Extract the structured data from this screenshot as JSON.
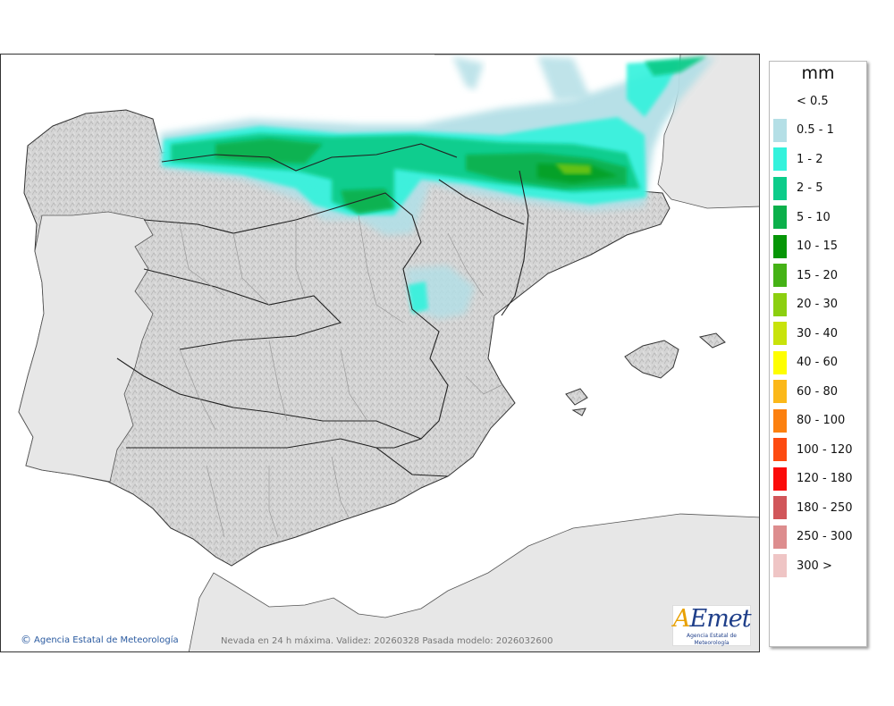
{
  "map": {
    "credit": "Agencia Estatal de Meteorología",
    "copyright_symbol": "©",
    "validity_text": "Nevada en 24 h máxima. Validez: 20260328 Pasada modelo: 2026032600",
    "logo": {
      "wordmark_a": "A",
      "wordmark_rest": "Emet",
      "subtitle": "Agencia Estatal de Meteorología"
    }
  },
  "legend": {
    "unit": "mm",
    "items": [
      {
        "label": "< 0.5",
        "color": "#ffffff"
      },
      {
        "label": "0.5 - 1",
        "color": "#b4dfe6"
      },
      {
        "label": "1 - 2",
        "color": "#33f2dc"
      },
      {
        "label": "2 - 5",
        "color": "#0ccc8a"
      },
      {
        "label": "5 - 10",
        "color": "#0bb04b"
      },
      {
        "label": "10 - 15",
        "color": "#069607"
      },
      {
        "label": "15 - 20",
        "color": "#45b216"
      },
      {
        "label": "20 - 30",
        "color": "#8ccf10"
      },
      {
        "label": "30 - 40",
        "color": "#c8e30b"
      },
      {
        "label": "40 - 60",
        "color": "#fefe00"
      },
      {
        "label": "60 - 80",
        "color": "#fbb81a"
      },
      {
        "label": "80 - 100",
        "color": "#fc800f"
      },
      {
        "label": "100 - 120",
        "color": "#fd4a10"
      },
      {
        "label": "120 - 180",
        "color": "#fb0b0a"
      },
      {
        "label": "180 - 250",
        "color": "#d1565a"
      },
      {
        "label": "250 - 300",
        "color": "#dd8d8e"
      },
      {
        "label": "300 >",
        "color": "#efc5c5"
      }
    ]
  },
  "colors": {
    "land": "#d6d6d6",
    "foreign_land": "#e7e7e7",
    "sea": "#ffffff",
    "border": "#222222"
  }
}
